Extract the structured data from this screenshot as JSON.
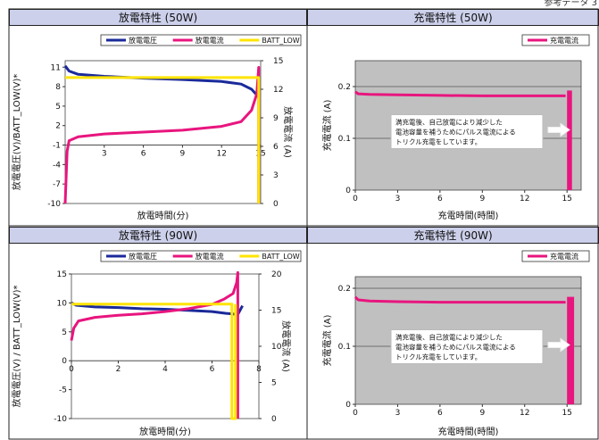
{
  "corner_text": "参考データ 3",
  "chart_data": [
    {
      "type": "line",
      "title": "放電特性 (50W)",
      "xlabel": "放電時間(分)",
      "ylabel": "放電電圧(V)/BATT_LOW(V)*",
      "y2label": "放電電流 (A)",
      "xlim": [
        0,
        15
      ],
      "ylim": [
        -10,
        12
      ],
      "y2lim": [
        0,
        15
      ],
      "xticks": [
        "3",
        "6",
        "9",
        "12",
        "15"
      ],
      "yticks": [
        "-10",
        "-7",
        "-4",
        "-1",
        "2",
        "5",
        "8",
        "11"
      ],
      "y2ticks": [
        "0",
        "3",
        "6",
        "9",
        "12",
        "15"
      ],
      "legend": [
        "放電電圧",
        "放電電流",
        "BATT_LOW"
      ],
      "legend_position": "top-right",
      "grid": false,
      "colors": {
        "voltage": "#1a2a9a",
        "current": "#e8157e",
        "batt": "#ffe400"
      },
      "series": [
        {
          "name": "放電電圧",
          "axis": "y",
          "x": [
            0,
            0.3,
            1,
            3,
            6,
            9,
            12,
            13.5,
            14.3,
            14.8
          ],
          "y": [
            11.2,
            10.4,
            9.9,
            9.6,
            9.3,
            9.1,
            8.8,
            8.4,
            7.6,
            6.5
          ]
        },
        {
          "name": "放電電流",
          "axis": "y2",
          "x": [
            0,
            0.15,
            0.3,
            1,
            3,
            6,
            9,
            12,
            13.5,
            14.3,
            14.7,
            14.85,
            14.85
          ],
          "y": [
            0,
            5.5,
            6.6,
            7.0,
            7.3,
            7.5,
            7.7,
            8.1,
            8.6,
            9.8,
            11.5,
            14.3,
            0
          ]
        },
        {
          "name": "BATT_LOW",
          "axis": "y",
          "x": [
            0,
            14.85,
            14.85
          ],
          "y": [
            9.4,
            9.4,
            -10
          ]
        }
      ]
    },
    {
      "type": "line",
      "title": "充電特性 (50W)",
      "xlabel": "充電時間(時間)",
      "ylabel": "充電電流 (A)",
      "xlim": [
        0,
        16
      ],
      "ylim": [
        0,
        0.25
      ],
      "xticks": [
        "0",
        "3",
        "6",
        "9",
        "12",
        "15"
      ],
      "yticks": [
        "0",
        "0.1",
        "0.2"
      ],
      "legend": [
        "充電電流"
      ],
      "legend_position": "top-right",
      "grid": true,
      "annotation": [
        "満充電後、自己放電により減少した",
        "電池容量を補うためにパルス電流による",
        "トリクル充電をしています。"
      ],
      "series": [
        {
          "name": "充電電流",
          "x": [
            0,
            0.2,
            1,
            3,
            6,
            9,
            12,
            14.9
          ],
          "y": [
            0.19,
            0.186,
            0.185,
            0.184,
            0.183,
            0.182,
            0.182,
            0.182
          ]
        }
      ],
      "pulse_band": [
        15.0,
        15.35
      ]
    },
    {
      "type": "line",
      "title": "放電特性 (90W)",
      "xlabel": "放電時間(分)",
      "ylabel": "放電電圧(V) / BATT_LOW(V)*",
      "y2label": "放電電流 (A)",
      "xlim": [
        0,
        8
      ],
      "ylim": [
        -10,
        15
      ],
      "y2lim": [
        0,
        20
      ],
      "xticks": [
        "0",
        "2",
        "4",
        "6",
        "8"
      ],
      "yticks": [
        "-10",
        "-5",
        "0",
        "5",
        "10",
        "15"
      ],
      "y2ticks": [
        "0",
        "5",
        "10",
        "15",
        "20"
      ],
      "legend": [
        "放電電圧",
        "放電電流",
        "BATT_LOW"
      ],
      "legend_position": "top-right",
      "grid": false,
      "series": [
        {
          "name": "放電電圧",
          "axis": "y",
          "x": [
            0,
            0.2,
            1,
            2,
            3,
            4,
            5,
            6,
            6.6,
            7.1,
            7.3
          ],
          "y": [
            10.0,
            9.6,
            9.3,
            9.2,
            9.0,
            8.9,
            8.7,
            8.5,
            8.2,
            8.0,
            9.5
          ]
        },
        {
          "name": "放電電流",
          "axis": "y2",
          "x": [
            0,
            0.1,
            0.3,
            1,
            2,
            3,
            4,
            5,
            6,
            6.5,
            6.9,
            7.05,
            7.1,
            7.1
          ],
          "y": [
            10.8,
            12.5,
            13.5,
            14.0,
            14.3,
            14.5,
            14.8,
            15.2,
            15.8,
            16.5,
            17.3,
            18.8,
            20.2,
            0
          ]
        },
        {
          "name": "BATT_LOW",
          "axis": "y",
          "x": [
            0,
            6.85,
            6.85,
            7.0,
            7.0
          ],
          "y": [
            9.8,
            9.8,
            -10,
            -10,
            9.8
          ]
        }
      ]
    },
    {
      "type": "line",
      "title": "充電特性 (90W)",
      "xlabel": "充電時間(時間)",
      "ylabel": "充電電流 (A)",
      "xlim": [
        0,
        16
      ],
      "ylim": [
        0,
        0.22
      ],
      "xticks": [
        "0",
        "3",
        "6",
        "9",
        "12",
        "15"
      ],
      "yticks": [
        "0",
        "0.1",
        "0.2"
      ],
      "legend": [
        "充電電流"
      ],
      "legend_position": "top-right",
      "grid": true,
      "annotation": [
        "満充電後、自己放電により減少した",
        "電池容量を補うためにパルス電流による",
        "トリクル充電をしています。"
      ],
      "series": [
        {
          "name": "充電電流",
          "x": [
            0,
            0.2,
            1,
            3,
            6,
            9,
            12,
            14.9
          ],
          "y": [
            0.185,
            0.18,
            0.178,
            0.177,
            0.176,
            0.176,
            0.176,
            0.176
          ]
        }
      ],
      "pulse_band": [
        15.0,
        15.5
      ]
    }
  ]
}
